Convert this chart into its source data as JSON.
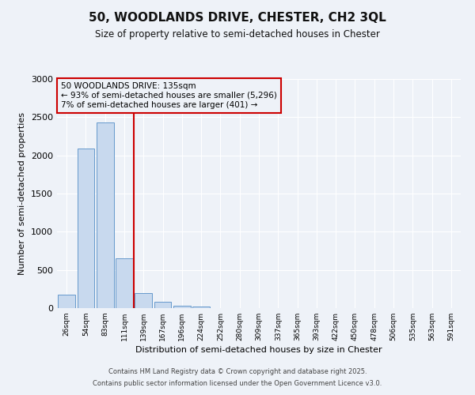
{
  "title_line1": "50, WOODLANDS DRIVE, CHESTER, CH2 3QL",
  "title_line2": "Size of property relative to semi-detached houses in Chester",
  "xlabel": "Distribution of semi-detached houses by size in Chester",
  "ylabel": "Number of semi-detached properties",
  "categories": [
    "26sqm",
    "54sqm",
    "83sqm",
    "111sqm",
    "139sqm",
    "167sqm",
    "196sqm",
    "224sqm",
    "252sqm",
    "280sqm",
    "309sqm",
    "337sqm",
    "365sqm",
    "393sqm",
    "422sqm",
    "450sqm",
    "478sqm",
    "506sqm",
    "535sqm",
    "563sqm",
    "591sqm"
  ],
  "values": [
    180,
    2090,
    2430,
    650,
    200,
    85,
    35,
    25,
    0,
    0,
    0,
    0,
    0,
    0,
    0,
    0,
    0,
    0,
    0,
    0,
    0
  ],
  "bar_color": "#c8d9ee",
  "bar_edge_color": "#6699cc",
  "red_line_index": 4,
  "red_line_color": "#cc0000",
  "annotation_title": "50 WOODLANDS DRIVE: 135sqm",
  "annotation_line1": "← 93% of semi-detached houses are smaller (5,296)",
  "annotation_line2": "7% of semi-detached houses are larger (401) →",
  "ylim": [
    0,
    3000
  ],
  "yticks": [
    0,
    500,
    1000,
    1500,
    2000,
    2500,
    3000
  ],
  "background_color": "#eef2f8",
  "grid_color": "#ffffff",
  "footer_line1": "Contains HM Land Registry data © Crown copyright and database right 2025.",
  "footer_line2": "Contains public sector information licensed under the Open Government Licence v3.0."
}
